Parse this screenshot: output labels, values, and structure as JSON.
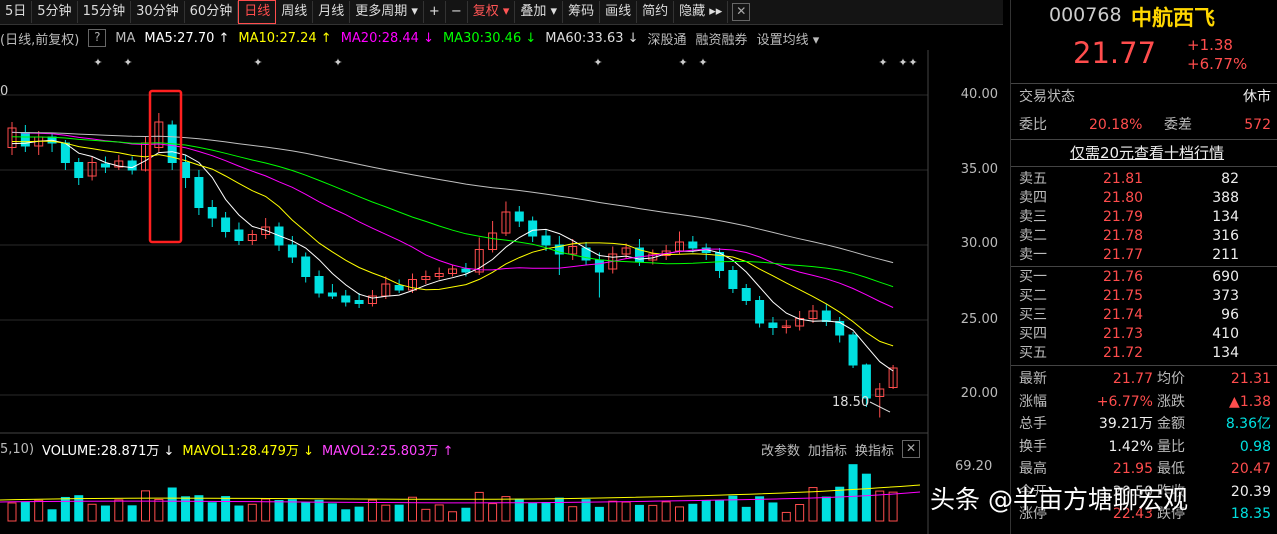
{
  "toolbar": {
    "items": [
      "5日",
      "5分钟",
      "15分钟",
      "30分钟",
      "60分钟",
      "日线",
      "周线",
      "月线",
      "更多周期 ▾",
      "+",
      "−",
      "复权 ▾",
      "叠加 ▾",
      "筹码",
      "画线",
      "简约",
      "隐藏 ▸▸"
    ],
    "active": "日线"
  },
  "ma_bar": {
    "mode": "(日线,前复权)",
    "help": "?",
    "ma": "MA",
    "ma5": "MA5:27.70 ↑",
    "ma10": "MA10:27.24 ↑",
    "ma20": "MA20:28.44 ↓",
    "ma30": "MA30:30.46 ↓",
    "ma60": "MA60:33.63 ↓",
    "links": [
      "深股通",
      "融资融券",
      "设置均线 ▾"
    ]
  },
  "price_axis": [
    "40.00",
    "35.00",
    "30.00",
    "25.00",
    "20.00"
  ],
  "left_edge_label": "0",
  "low_label": "18.50",
  "vol_header": {
    "params": "5,10)",
    "volume": "VOLUME:28.871万 ↓",
    "mavol1": "MAVOL1:28.479万 ↓",
    "mavol2": "MAVOL2:25.803万 ↑",
    "links": [
      "改参数",
      "加指标",
      "换指标"
    ],
    "scale": "69.20"
  },
  "stock": {
    "code": "000768",
    "name": "中航西飞",
    "price": "21.77",
    "change": "+1.38",
    "change_pct": "+6.77%",
    "status_label": "交易状态",
    "status": "休市",
    "weibi_label": "委比",
    "weibi": "20.18%",
    "weicha_label": "委差",
    "weicha": "572",
    "promo": "仅需20元查看十档行情"
  },
  "asks": [
    {
      "label": "卖五",
      "price": "21.81",
      "vol": "82"
    },
    {
      "label": "卖四",
      "price": "21.80",
      "vol": "388"
    },
    {
      "label": "卖三",
      "price": "21.79",
      "vol": "134"
    },
    {
      "label": "卖二",
      "price": "21.78",
      "vol": "316"
    },
    {
      "label": "卖一",
      "price": "21.77",
      "vol": "211"
    }
  ],
  "bids": [
    {
      "label": "买一",
      "price": "21.76",
      "vol": "690"
    },
    {
      "label": "买二",
      "price": "21.75",
      "vol": "373"
    },
    {
      "label": "买三",
      "price": "21.74",
      "vol": "96"
    },
    {
      "label": "买四",
      "price": "21.73",
      "vol": "410"
    },
    {
      "label": "买五",
      "price": "21.72",
      "vol": "134"
    }
  ],
  "stats": [
    {
      "l1": "最新",
      "v1": "21.77",
      "l2": "均价",
      "v2": "21.31"
    },
    {
      "l1": "涨幅",
      "v1": "+6.77%",
      "l2": "涨跌",
      "v2": "▲1.38"
    },
    {
      "l1": "总手",
      "v1": "39.21万",
      "l2": "金额",
      "v2": "8.36亿"
    },
    {
      "l1": "换手",
      "v1": "1.42%",
      "l2": "量比",
      "v2": "0.98"
    },
    {
      "l1": "最高",
      "v1": "21.95",
      "l2": "最低",
      "v2": "20.47"
    },
    {
      "l1": "今开",
      "v1": "20.50",
      "l2": "昨收",
      "v2": "20.39"
    },
    {
      "l1": "涨停",
      "v1": "22.43",
      "l2": "跌停",
      "v2": "18.35"
    }
  ],
  "watermark": "头条 @半亩方塘聊宏观",
  "colors": {
    "up": "#ff4d4d",
    "down": "#00e0e0",
    "ma5": "#ffffff",
    "ma10": "#ffff00",
    "ma20": "#ff00ff",
    "ma30": "#00ff00",
    "ma60": "#c0c0c0"
  },
  "chart_data": {
    "type": "candlestick",
    "ylim": [
      17.5,
      42
    ],
    "candles": [
      [
        36.5,
        37.8,
        38.2,
        36.0
      ],
      [
        37.5,
        36.6,
        38.0,
        36.2
      ],
      [
        36.6,
        37.2,
        37.6,
        36.0
      ],
      [
        37.2,
        36.8,
        37.5,
        36.2
      ],
      [
        36.8,
        35.5,
        37.0,
        35.0
      ],
      [
        35.5,
        34.5,
        35.8,
        34.0
      ],
      [
        34.6,
        35.5,
        35.9,
        34.3
      ],
      [
        35.4,
        35.2,
        35.9,
        34.8
      ],
      [
        35.2,
        35.6,
        36.0,
        35.0
      ],
      [
        35.6,
        35.0,
        35.9,
        34.7
      ],
      [
        35.0,
        36.8,
        37.2,
        34.9
      ],
      [
        36.5,
        38.2,
        38.8,
        36.2
      ],
      [
        38.0,
        35.5,
        38.3,
        35.0
      ],
      [
        35.5,
        34.5,
        36.0,
        33.8
      ],
      [
        34.5,
        32.5,
        35.0,
        32.0
      ],
      [
        32.5,
        31.8,
        33.0,
        31.2
      ],
      [
        31.8,
        30.9,
        32.2,
        30.5
      ],
      [
        31.0,
        30.3,
        31.5,
        30.0
      ],
      [
        30.3,
        30.7,
        31.0,
        30.0
      ],
      [
        30.7,
        31.2,
        31.8,
        30.4
      ],
      [
        31.2,
        30.0,
        31.5,
        29.6
      ],
      [
        30.0,
        29.2,
        30.6,
        28.8
      ],
      [
        29.2,
        27.9,
        29.5,
        27.5
      ],
      [
        27.9,
        26.8,
        28.3,
        26.5
      ],
      [
        26.8,
        26.6,
        27.4,
        26.4
      ],
      [
        26.6,
        26.2,
        27.0,
        25.9
      ],
      [
        26.3,
        26.1,
        26.8,
        25.8
      ],
      [
        26.1,
        26.6,
        27.0,
        25.9
      ],
      [
        26.6,
        27.4,
        27.9,
        26.4
      ],
      [
        27.3,
        27.0,
        27.7,
        26.8
      ],
      [
        27.0,
        27.7,
        28.1,
        26.8
      ],
      [
        27.7,
        27.9,
        28.3,
        27.4
      ],
      [
        27.9,
        28.1,
        28.5,
        27.7
      ],
      [
        28.1,
        28.4,
        28.7,
        27.9
      ],
      [
        28.4,
        28.2,
        28.8,
        27.9
      ],
      [
        28.2,
        29.7,
        30.5,
        28.0
      ],
      [
        29.7,
        30.8,
        31.6,
        29.5
      ],
      [
        30.8,
        32.2,
        32.9,
        30.6
      ],
      [
        32.2,
        31.6,
        32.6,
        31.2
      ],
      [
        31.6,
        30.6,
        31.9,
        30.2
      ],
      [
        30.6,
        30.0,
        31.0,
        29.6
      ],
      [
        30.0,
        29.4,
        30.6,
        28.0
      ],
      [
        29.4,
        29.9,
        30.4,
        29.0
      ],
      [
        29.8,
        29.0,
        30.2,
        28.7
      ],
      [
        29.0,
        28.2,
        29.5,
        26.5
      ],
      [
        28.4,
        29.4,
        29.9,
        28.1
      ],
      [
        29.4,
        29.8,
        30.1,
        29.1
      ],
      [
        29.8,
        28.9,
        30.4,
        28.6
      ],
      [
        29.0,
        29.4,
        29.7,
        28.7
      ],
      [
        29.3,
        29.6,
        30.0,
        29.0
      ],
      [
        29.6,
        30.2,
        30.9,
        29.4
      ],
      [
        30.2,
        29.8,
        30.6,
        29.5
      ],
      [
        29.8,
        29.5,
        30.1,
        29.0
      ],
      [
        29.5,
        28.3,
        29.8,
        27.8
      ],
      [
        28.3,
        27.1,
        28.6,
        26.8
      ],
      [
        27.1,
        26.3,
        27.4,
        26.0
      ],
      [
        26.3,
        24.8,
        26.6,
        24.5
      ],
      [
        24.8,
        24.5,
        25.2,
        24.0
      ],
      [
        24.5,
        24.6,
        25.0,
        24.1
      ],
      [
        24.6,
        25.1,
        25.6,
        24.3
      ],
      [
        25.1,
        25.6,
        26.0,
        24.8
      ],
      [
        25.6,
        24.9,
        26.1,
        24.6
      ],
      [
        24.9,
        24.0,
        25.2,
        23.5
      ],
      [
        24.0,
        22.0,
        24.2,
        21.8
      ],
      [
        22.0,
        19.8,
        22.1,
        19.2
      ],
      [
        19.9,
        20.4,
        20.8,
        18.5
      ],
      [
        20.5,
        21.8,
        22.0,
        20.4
      ]
    ]
  }
}
